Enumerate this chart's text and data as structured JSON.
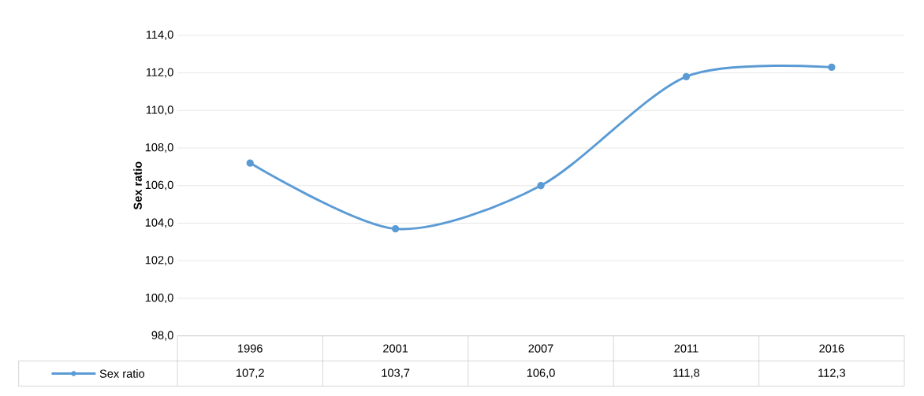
{
  "chart_data": {
    "type": "line",
    "ylabel": "Sex ratio",
    "categories": [
      "1996",
      "2001",
      "2007",
      "2011",
      "2016"
    ],
    "series": [
      {
        "name": "Sex ratio",
        "color": "#5b9bd5",
        "values": [
          107.2,
          103.7,
          106.0,
          111.8,
          112.3
        ],
        "value_labels": [
          "107,2",
          "103,7",
          "106,0",
          "111,8",
          "112,3"
        ]
      }
    ],
    "ylim": [
      98,
      114
    ],
    "yticks": [
      {
        "value": 98,
        "label": "98,0"
      },
      {
        "value": 100,
        "label": "100,0"
      },
      {
        "value": 102,
        "label": "102,0"
      },
      {
        "value": 104,
        "label": "104,0"
      },
      {
        "value": 106,
        "label": "106,0"
      },
      {
        "value": 108,
        "label": "108,0"
      },
      {
        "value": 110,
        "label": "110,0"
      },
      {
        "value": 112,
        "label": "112,0"
      },
      {
        "value": 114,
        "label": "114,0"
      }
    ],
    "grid": "y",
    "legend": "bottom",
    "marker": "circle",
    "line_style": "solid"
  }
}
